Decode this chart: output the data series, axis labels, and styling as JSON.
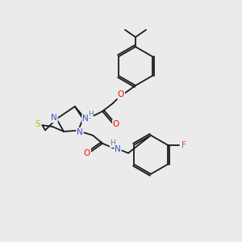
{
  "background_color": "#ebebeb",
  "bond_color": "#1a1a1a",
  "atom_colors": {
    "N": "#3355cc",
    "O": "#ee1100",
    "S": "#bbbb00",
    "F": "#cc44aa",
    "H": "#4a9090",
    "C": "#1a1a1a"
  },
  "figsize": [
    3.0,
    3.0
  ],
  "dpi": 100
}
